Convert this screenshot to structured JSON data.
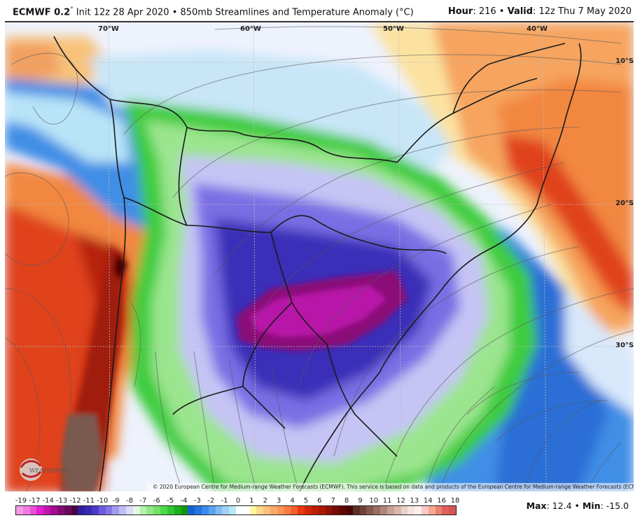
{
  "header": {
    "model": "ECMWF 0.2",
    "degree": "°",
    "init": " Init 12z 28 Apr 2020 • 850mb Streamlines and Temperature Anomaly (°C)",
    "hour_label": "Hour",
    "hour_value": ": 216 • ",
    "valid_label": "Valid",
    "valid_value": ": 12z Thu 7 May 2020"
  },
  "map": {
    "longitude_labels": [
      "70°W",
      "60°W",
      "50°W",
      "40°W"
    ],
    "latitude_labels": [
      "10°S",
      "20°S",
      "30°S"
    ],
    "copyright": "© 2020 European Centre for Medium-range Weather Forecasts (ECMWF). This service is based on data and products of the European Centre for Medium-range Weather Forecasts (ECMWF).",
    "logo_text": "WEATHERBELL",
    "colors": {
      "ocean_base": "#e8eefc",
      "warm_orange": "#f2873f",
      "warm_red": "#e0431a",
      "dark_red": "#b5230f",
      "light_yellow": "#fbe9a0",
      "light_blue": "#b8e4f7",
      "mid_blue": "#3f8ee6",
      "green_light": "#9be58f",
      "green": "#3ccc3c",
      "green_dark": "#18a818",
      "purple_light": "#c6c4f5",
      "purple": "#7a6ee4",
      "indigo": "#3a2db8",
      "magenta_dark": "#8a0f78",
      "magenta": "#b815a8",
      "brown": "#7a5a50"
    }
  },
  "colorbar": {
    "tick_labels": [
      "-19",
      "-17",
      "-14",
      "-13",
      "-12",
      "-11",
      "-10",
      "-9",
      "-8",
      "-7",
      "-6",
      "-5",
      "-4",
      "-3",
      "-2",
      "-1",
      "0",
      "1",
      "2",
      "3",
      "4",
      "5",
      "6",
      "7",
      "8",
      "9",
      "10",
      "11",
      "12",
      "13",
      "14",
      "16",
      "18"
    ],
    "colors": [
      "#f29ae8",
      "#f07ae0",
      "#ea4fd6",
      "#e020d0",
      "#c412b0",
      "#a40c92",
      "#850a76",
      "#6a085e",
      "#4a063e",
      "#2e1ea0",
      "#3a28b6",
      "#4a3cc8",
      "#6a5cdc",
      "#8474e6",
      "#a09af0",
      "#c0bcf6",
      "#dcdcfa",
      "#e4fae0",
      "#b6f2aa",
      "#92e88a",
      "#74e06a",
      "#4cd84a",
      "#30c630",
      "#1cae1c",
      "#12960f",
      "#1660d0",
      "#2274e4",
      "#3a8cec",
      "#5aa4f0",
      "#7ebcf4",
      "#9ed2f6",
      "#b8e8f8",
      "#ffffff",
      "#ffffff",
      "#fdf7a0",
      "#fcd88a",
      "#fcc07a",
      "#fba868",
      "#fb9456",
      "#fa7a40",
      "#f85c28",
      "#e83a10",
      "#d02808",
      "#bc1e06",
      "#a81804",
      "#901204",
      "#780c04",
      "#600804",
      "#4a0604",
      "#5c3028",
      "#704238",
      "#86584c",
      "#9a6e62",
      "#b08878",
      "#c8a294",
      "#dab8ac",
      "#ead0c8",
      "#f6e4e0",
      "#fdf0ec",
      "#fcc8c8",
      "#f8a890",
      "#ec8070",
      "#e06060",
      "#d65454"
    ]
  },
  "stats": {
    "max_label": "Max",
    "max_value": ": 12.4 • ",
    "min_label": "Min",
    "min_value": ": -15.0"
  }
}
